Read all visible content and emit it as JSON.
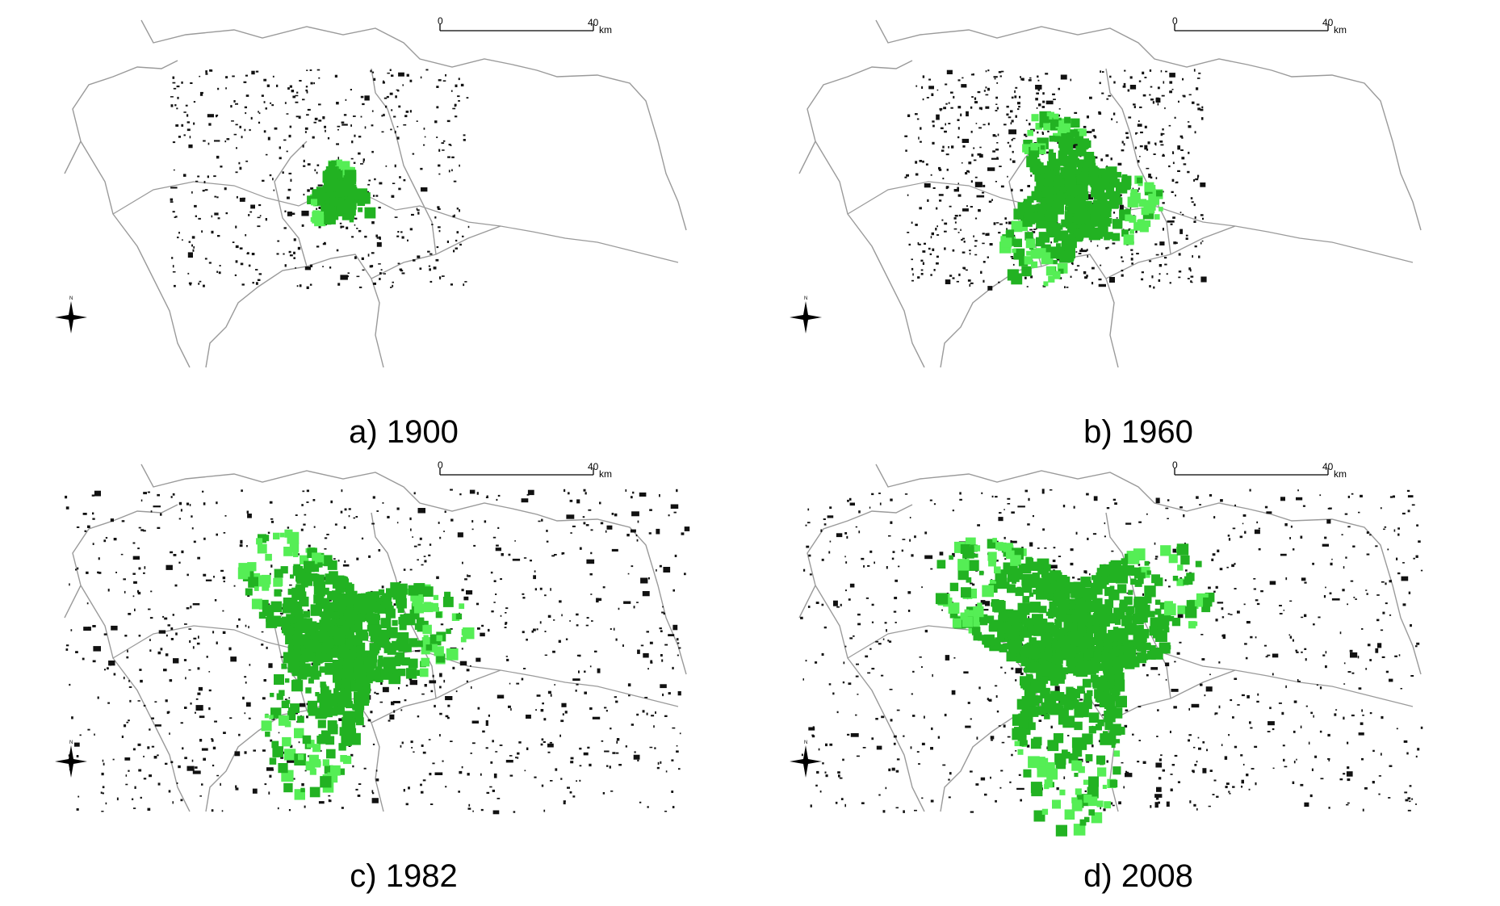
{
  "panels": [
    {
      "id": "a",
      "caption": "a) 1900",
      "spread": 0.16,
      "scatter_density": 0.55,
      "scatter_extent": "inner"
    },
    {
      "id": "b",
      "caption": "b) 1960",
      "spread": 0.4,
      "scatter_density": 0.75,
      "scatter_extent": "inner"
    },
    {
      "id": "c",
      "caption": "c) 1982",
      "spread": 0.58,
      "scatter_density": 1.0,
      "scatter_extent": "full"
    },
    {
      "id": "d",
      "caption": "d) 2008",
      "spread": 0.68,
      "scatter_density": 0.9,
      "scatter_extent": "full"
    }
  ],
  "scale_bar": {
    "start_label": "0",
    "end_label": "40",
    "unit": "km"
  },
  "north_label": "N",
  "colors": {
    "urban_core": "#22b222",
    "urban_edge": "#55ee55",
    "settlement": "#111111",
    "boundary": "#9a9a9a",
    "background": "#ffffff"
  }
}
